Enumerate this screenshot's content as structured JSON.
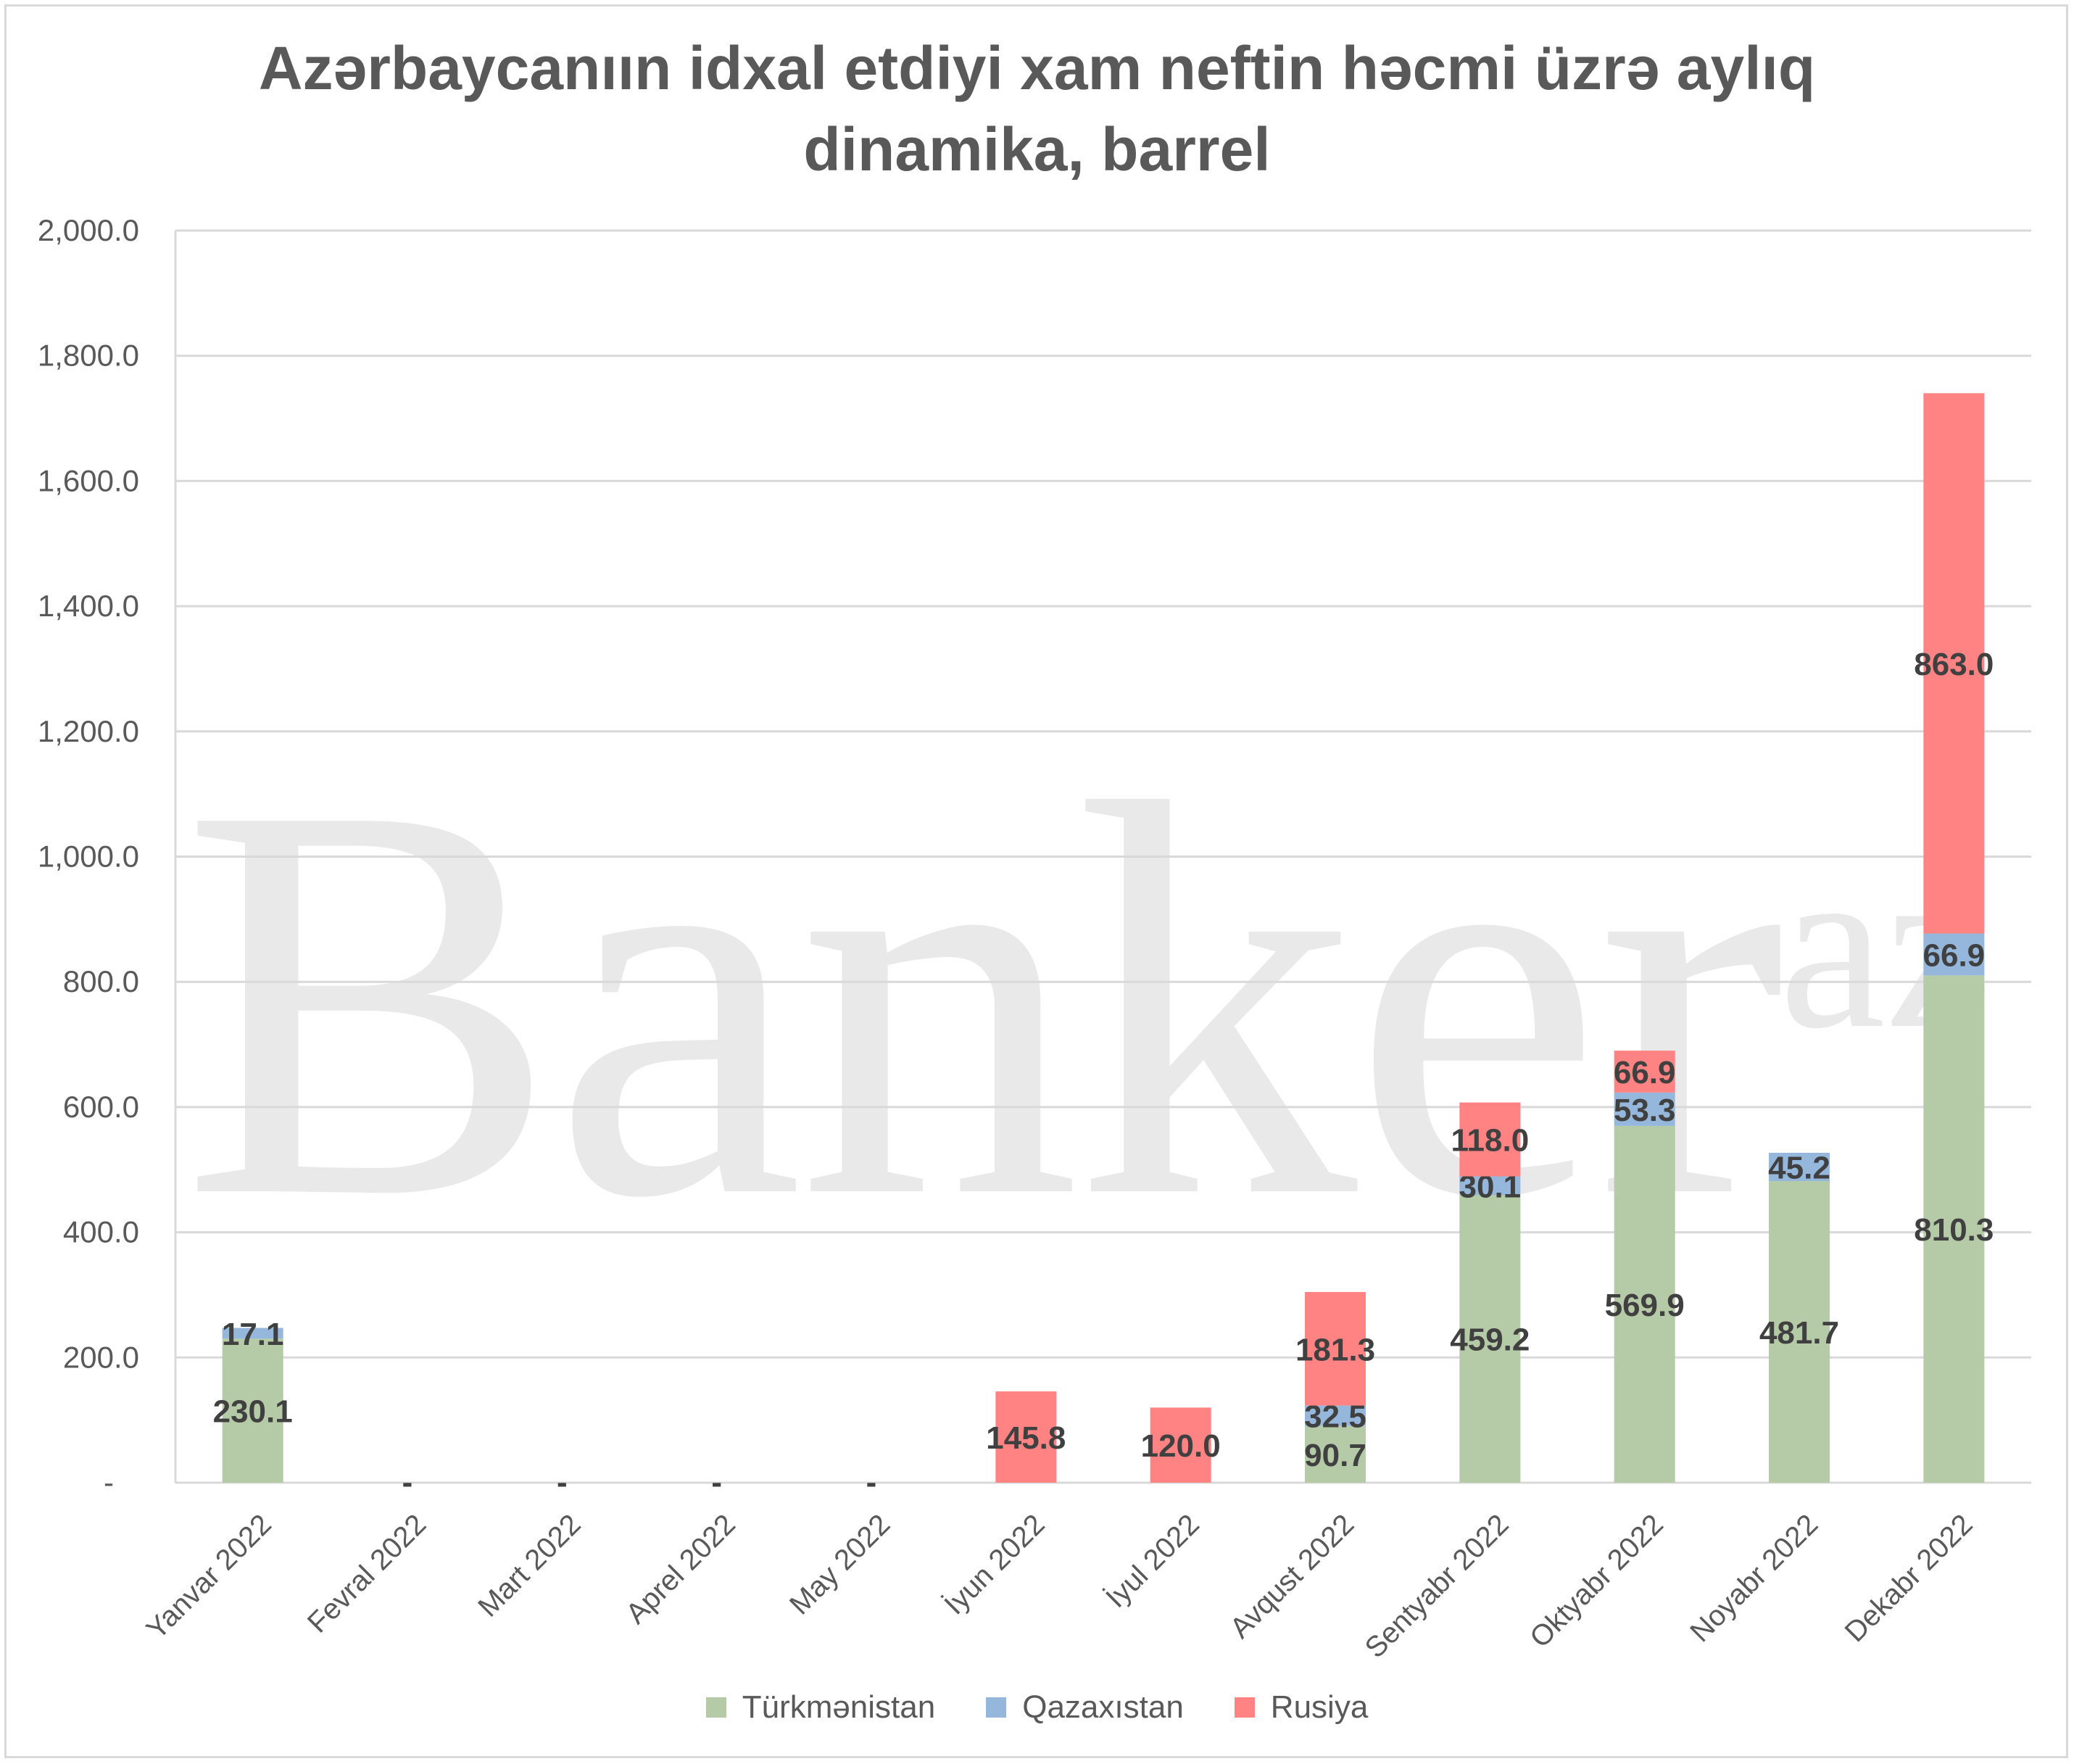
{
  "title_line1": "Azərbaycanıın idxal etdiyi xam neftin həcmi üzrə aylıq",
  "title_line2": "dinamika, barrel",
  "watermark_text": "Banker",
  "watermark_sup": "az",
  "colors": {
    "Türkmənistan": "#b5caa6",
    "Qazaxıstan": "#95b7dc",
    "Rusiya": "#ff8383",
    "grid": "#d9d9d9"
  },
  "chart_data": {
    "type": "bar",
    "stacked": true,
    "categories": [
      "Yanvar 2022",
      "Fevral  2022",
      "Mart  2022",
      "Aprel  2022",
      "May 2022",
      "İyun  2022",
      "İyul  2022",
      "Avqust  2022",
      "Sentyabr  2022",
      "Oktyabr  2022",
      "Noyabr 2022",
      "Dekabr 2022"
    ],
    "series": [
      {
        "name": "Türkmənistan",
        "values": [
          230.1,
          null,
          null,
          null,
          null,
          null,
          null,
          90.7,
          459.2,
          569.9,
          481.7,
          810.3
        ],
        "labels": [
          "230.1",
          "",
          "",
          "",
          "",
          "",
          "",
          "90.7",
          "459.2",
          "569.9",
          "481.7",
          "810.3"
        ]
      },
      {
        "name": "Qazaxıstan",
        "values": [
          17.1,
          null,
          null,
          null,
          null,
          null,
          null,
          32.5,
          30.1,
          53.3,
          45.2,
          66.9
        ],
        "labels": [
          "17.1",
          "",
          "",
          "",
          "",
          "",
          "",
          "32.5",
          "30.1",
          "53.3",
          "45.2",
          "66.9"
        ]
      },
      {
        "name": "Rusiya",
        "values": [
          null,
          null,
          null,
          null,
          null,
          145.8,
          120.0,
          181.3,
          118.0,
          66.9,
          null,
          863.0
        ],
        "labels": [
          "",
          "",
          "",
          "",
          "",
          "145.8",
          "120.0",
          "181.3",
          "118.0",
          "66.9",
          "",
          "863.0"
        ]
      }
    ],
    "empty_marker": "-",
    "y_ticks": [
      "-",
      "200.0",
      "400.0",
      "600.0",
      "800.0",
      "1,000.0",
      "1,200.0",
      "1,400.0",
      "1,600.0",
      "1,800.0",
      "2,000.0"
    ],
    "ylim": [
      0,
      2000
    ],
    "grid": true,
    "legend": "bottom"
  }
}
